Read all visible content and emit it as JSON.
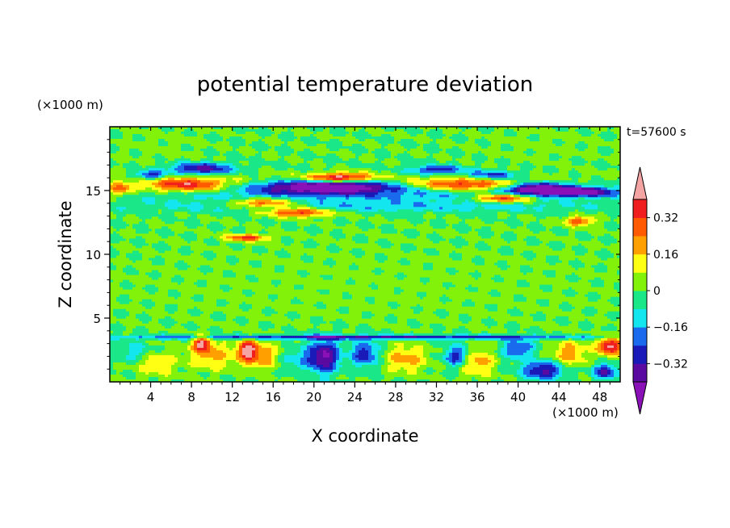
{
  "chart_data": {
    "type": "heatmap",
    "title": "potential temperature deviation",
    "xlabel": "X coordinate",
    "ylabel": "Z coordinate",
    "x_unit": "(×1000 m)",
    "y_unit": "(×1000 m)",
    "time_label": "t=57600 s",
    "xlim": [
      0,
      50
    ],
    "ylim": [
      0,
      20
    ],
    "x_ticks": [
      4,
      8,
      12,
      16,
      20,
      24,
      28,
      32,
      36,
      40,
      44,
      48
    ],
    "y_ticks": [
      5,
      10,
      15
    ],
    "colorbar": {
      "levels": [
        -0.4,
        -0.32,
        -0.24,
        -0.16,
        -0.08,
        0,
        0.08,
        0.16,
        0.24,
        0.32,
        0.4
      ],
      "labels": [
        "0.32",
        "0.16",
        "0",
        "-0.16",
        "-0.32"
      ],
      "label_values": [
        0.32,
        0.16,
        0,
        -0.16,
        -0.32
      ],
      "colors": [
        "#8a10b8",
        "#5a0aa0",
        "#1a1ab8",
        "#1a6aee",
        "#14e6f0",
        "#1ae888",
        "#82f20a",
        "#ffff14",
        "#ffa000",
        "#ff5a00",
        "#f01e1e",
        "#f5a4a4"
      ]
    },
    "features": [
      {
        "x": 25,
        "z": 15.1,
        "sx": 24,
        "sz": 1.1,
        "value": -0.22
      },
      {
        "x": 25,
        "z": 15.9,
        "sx": 25,
        "sz": 0.6,
        "value": 0.14
      },
      {
        "x": 7.5,
        "z": 15.4,
        "sx": 4.5,
        "sz": 0.55,
        "value": 0.44
      },
      {
        "x": 15,
        "z": 14.0,
        "sx": 3.2,
        "sz": 0.4,
        "value": 0.36
      },
      {
        "x": 18.5,
        "z": 13.3,
        "sx": 3.0,
        "sz": 0.35,
        "value": 0.38
      },
      {
        "x": 21.5,
        "z": 15.3,
        "sx": 6.0,
        "sz": 0.5,
        "value": -0.44
      },
      {
        "x": 35,
        "z": 15.4,
        "sx": 6.0,
        "sz": 0.5,
        "value": 0.44
      },
      {
        "x": 38.5,
        "z": 14.4,
        "sx": 3.0,
        "sz": 0.35,
        "value": 0.4
      },
      {
        "x": 41.5,
        "z": 15.2,
        "sx": 3.2,
        "sz": 0.45,
        "value": -0.44
      },
      {
        "x": 45.5,
        "z": 14.9,
        "sx": 4.0,
        "sz": 0.35,
        "value": -0.44
      },
      {
        "x": 9.0,
        "z": 16.7,
        "sx": 3.0,
        "sz": 0.45,
        "value": -0.36
      },
      {
        "x": 4.0,
        "z": 16.2,
        "sx": 1.5,
        "sz": 0.35,
        "value": -0.3
      },
      {
        "x": 22.5,
        "z": 16.0,
        "sx": 3.0,
        "sz": 0.35,
        "value": 0.44
      },
      {
        "x": 32.0,
        "z": 16.6,
        "sx": 2.5,
        "sz": 0.35,
        "value": -0.3
      },
      {
        "x": 37.5,
        "z": 16.2,
        "sx": 2.5,
        "sz": 0.35,
        "value": -0.3
      },
      {
        "x": 1.0,
        "z": 15.1,
        "sx": 1.2,
        "sz": 0.5,
        "value": 0.3
      },
      {
        "x": 46.0,
        "z": 12.6,
        "sx": 1.5,
        "sz": 0.35,
        "value": 0.3
      },
      {
        "x": 13.5,
        "z": 11.3,
        "sx": 2.0,
        "sz": 0.25,
        "value": 0.36
      },
      {
        "x": 25,
        "z": 13.7,
        "sx": 25,
        "sz": 0.4,
        "value": -0.1
      },
      {
        "x": 25,
        "z": 3.5,
        "sx": 25,
        "sz": 0.18,
        "value": -0.32
      },
      {
        "x": 21.0,
        "z": 2.0,
        "sx": 1.5,
        "sz": 1.3,
        "value": -0.42
      },
      {
        "x": 25.0,
        "z": 2.2,
        "sx": 1.3,
        "sz": 1.0,
        "value": -0.3
      },
      {
        "x": 42.5,
        "z": 0.9,
        "sx": 2.0,
        "sz": 0.7,
        "value": -0.36
      },
      {
        "x": 48.5,
        "z": 0.8,
        "sx": 1.2,
        "sz": 0.6,
        "value": -0.32
      },
      {
        "x": 13.5,
        "z": 2.5,
        "sx": 1.0,
        "sz": 0.8,
        "value": 0.38
      },
      {
        "x": 9.0,
        "z": 3.0,
        "sx": 0.9,
        "sz": 0.6,
        "value": 0.4
      },
      {
        "x": 49.0,
        "z": 2.8,
        "sx": 1.2,
        "sz": 0.7,
        "value": 0.44
      },
      {
        "x": 34.0,
        "z": 2.0,
        "sx": 1.2,
        "sz": 0.8,
        "value": -0.3
      },
      {
        "x": 40.0,
        "z": 2.6,
        "sx": 1.6,
        "sz": 0.8,
        "value": -0.24
      },
      {
        "x": 10.0,
        "z": 2.0,
        "sx": 2.0,
        "sz": 1.0,
        "value": 0.2
      },
      {
        "x": 15.0,
        "z": 2.0,
        "sx": 2.0,
        "sz": 1.0,
        "value": 0.22
      },
      {
        "x": 29.0,
        "z": 1.8,
        "sx": 2.0,
        "sz": 1.0,
        "value": 0.2
      },
      {
        "x": 36.0,
        "z": 1.5,
        "sx": 1.6,
        "sz": 1.0,
        "value": 0.22
      },
      {
        "x": 45.0,
        "z": 2.2,
        "sx": 1.6,
        "sz": 1.0,
        "value": 0.22
      },
      {
        "x": 4.5,
        "z": 1.5,
        "sx": 2.0,
        "sz": 1.0,
        "value": 0.16
      },
      {
        "x": 2.5,
        "z": 2.3,
        "sx": 2.0,
        "sz": 0.8,
        "value": -0.14
      },
      {
        "x": 18.0,
        "z": 1.8,
        "sx": 2.0,
        "sz": 0.9,
        "value": -0.14
      },
      {
        "x": 25.0,
        "z": 7.5,
        "sx": 25,
        "sz": 3.0,
        "value": 0.03
      },
      {
        "x": 5.0,
        "z": 18.5,
        "sx": 4.0,
        "sz": 1.5,
        "value": 0.03
      },
      {
        "x": 42.0,
        "z": 18.5,
        "sx": 5.0,
        "sz": 1.5,
        "value": 0.03
      }
    ]
  }
}
